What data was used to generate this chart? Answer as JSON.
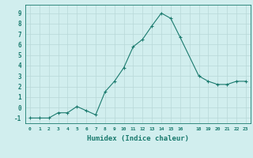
{
  "x": [
    0,
    1,
    2,
    3,
    4,
    5,
    6,
    7,
    8,
    9,
    10,
    11,
    12,
    13,
    14,
    15,
    16,
    18,
    19,
    20,
    21,
    22,
    23
  ],
  "y": [
    -1,
    -1,
    -1,
    -0.5,
    -0.5,
    0.1,
    -0.3,
    -0.7,
    1.5,
    2.5,
    3.8,
    5.8,
    6.5,
    7.8,
    9.0,
    8.5,
    6.7,
    3.0,
    2.5,
    2.2,
    2.2,
    2.5,
    2.5
  ],
  "xlabel": "Humidex (Indice chaleur)",
  "bg_color": "#d1eeee",
  "grid_color": "#b8d8d8",
  "line_color": "#1a7a6e",
  "xtick_labels": [
    "0",
    "1",
    "2",
    "3",
    "4",
    "5",
    "6",
    "7",
    "8",
    "9",
    "10",
    "11",
    "12",
    "13",
    "14",
    "15",
    "16",
    "",
    "18",
    "19",
    "20",
    "21",
    "22",
    "23"
  ],
  "ytick_labels": [
    "-1",
    "0",
    "1",
    "2",
    "3",
    "4",
    "5",
    "6",
    "7",
    "8",
    "9"
  ],
  "ytick_vals": [
    -1,
    0,
    1,
    2,
    3,
    4,
    5,
    6,
    7,
    8,
    9
  ],
  "ylim": [
    -1.5,
    9.8
  ],
  "xlim": [
    -0.5,
    23.5
  ]
}
